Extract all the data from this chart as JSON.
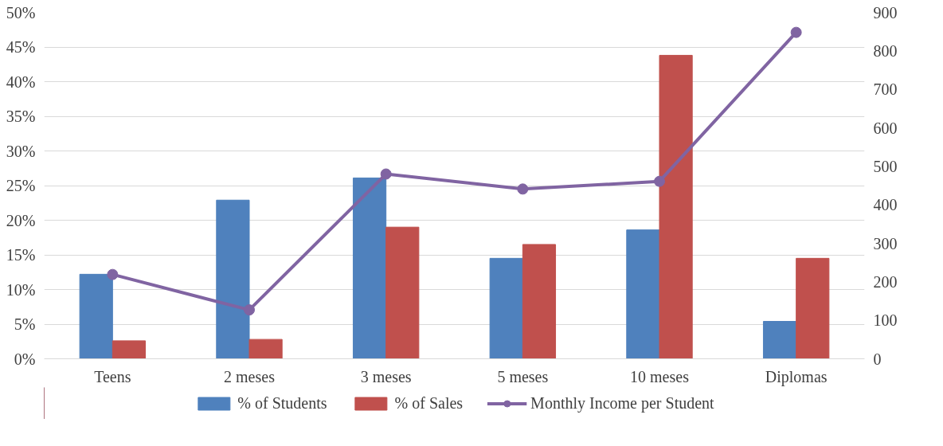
{
  "chart_data": {
    "type": "bar",
    "categories": [
      "Teens",
      "2 meses",
      "3 meses",
      "5 meses",
      "10 meses",
      "Diplomas"
    ],
    "series": [
      {
        "name": "% of Students",
        "color": "#4f81bd",
        "values": [
          12.2,
          22.9,
          26.1,
          14.5,
          18.6,
          5.4
        ]
      },
      {
        "name": "% of Sales",
        "color": "#c0504d",
        "values": [
          2.6,
          2.8,
          19.0,
          16.5,
          43.8,
          14.5
        ]
      },
      {
        "name": "Monthly Income per Student",
        "color": "#8064a2",
        "type": "line",
        "axis": "y2",
        "marker": "circle",
        "values": [
          219,
          127,
          480,
          441,
          461,
          848
        ]
      }
    ],
    "ylim": [
      0,
      50
    ],
    "yticks": [
      {
        "value": 0,
        "label": "0%"
      },
      {
        "value": 5,
        "label": "5%"
      },
      {
        "value": 10,
        "label": "10%"
      },
      {
        "value": 15,
        "label": "15%"
      },
      {
        "value": 20,
        "label": "20%"
      },
      {
        "value": 25,
        "label": "25%"
      },
      {
        "value": 30,
        "label": "30%"
      },
      {
        "value": 35,
        "label": "35%"
      },
      {
        "value": 40,
        "label": "40%"
      },
      {
        "value": 45,
        "label": "45%"
      },
      {
        "value": 50,
        "label": "50%"
      }
    ],
    "y2lim": [
      0,
      900
    ],
    "y2ticks": [
      0,
      100,
      200,
      300,
      400,
      500,
      600,
      700,
      800,
      900
    ],
    "grid": "y",
    "legend": "bottom"
  }
}
